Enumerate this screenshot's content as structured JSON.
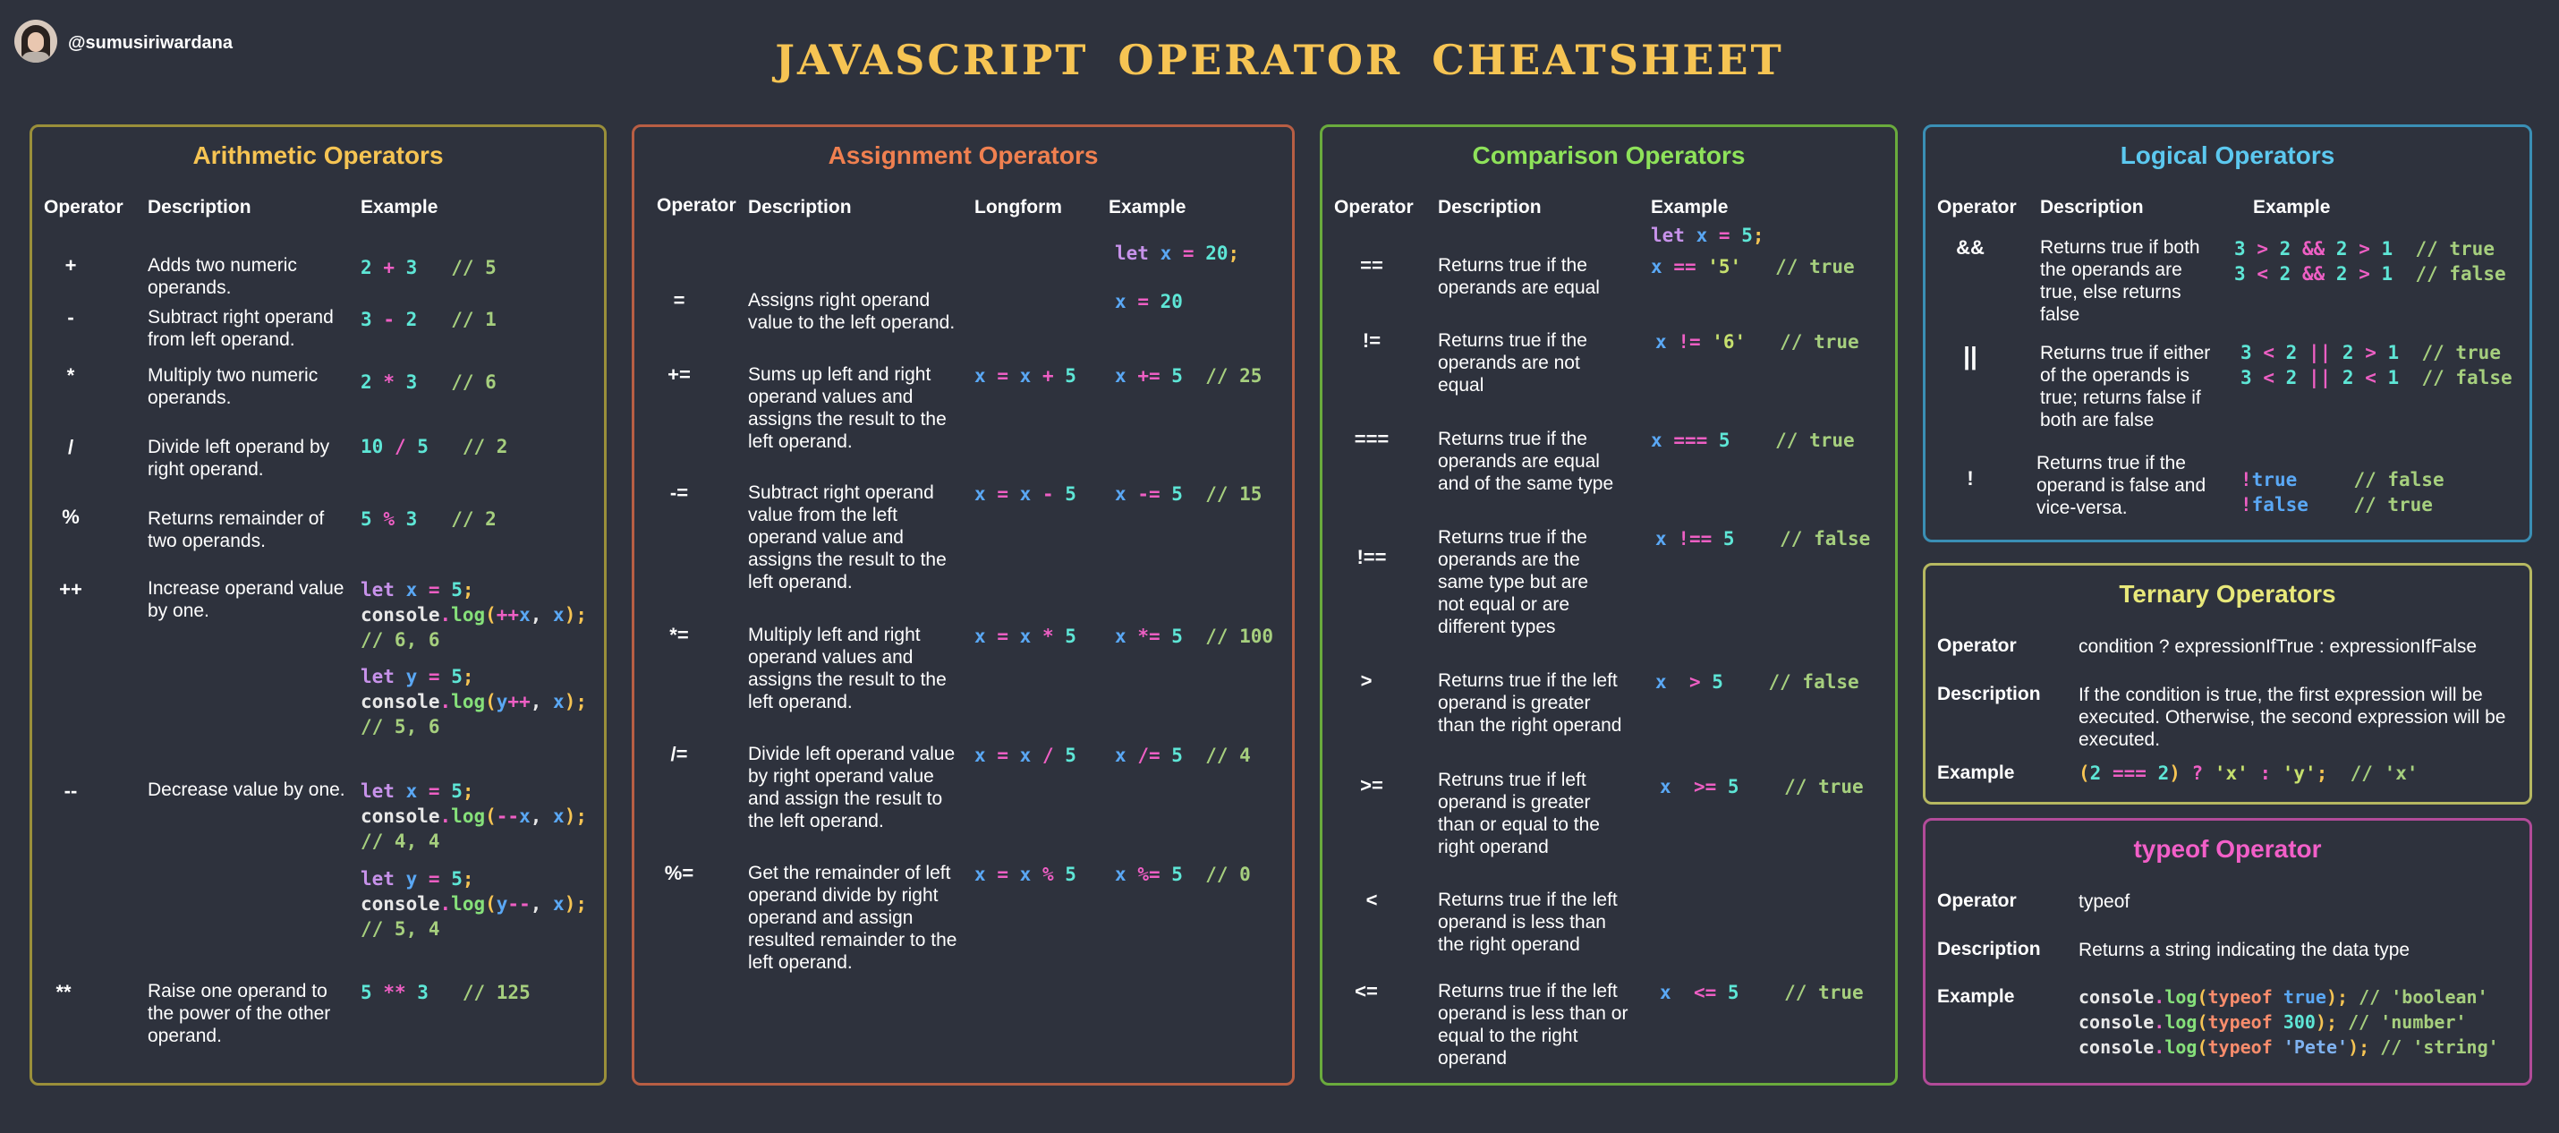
{
  "header": {
    "handle": "@sumusiriwardana",
    "title": "JAVASCRIPT OPERATOR CHEATSHEET"
  },
  "arithmetic": {
    "title": "Arithmetic Operators",
    "headers": [
      "Operator",
      "Description",
      "Example"
    ],
    "rows": [
      {
        "op": "+",
        "desc": "Adds two numeric operands.",
        "ex": "2 + 3   // 5"
      },
      {
        "op": "-",
        "desc": "Subtract right operand from left operand.",
        "ex": "3 - 2   // 1"
      },
      {
        "op": "*",
        "desc": "Multiply two numeric operands.",
        "ex": "2 * 3   // 6"
      },
      {
        "op": "/",
        "desc": "Divide left operand by right operand.",
        "ex": "10 / 5   // 2"
      },
      {
        "op": "%",
        "desc": "Returns remainder of two operands.",
        "ex": "5 % 3   // 2"
      },
      {
        "op": "++",
        "desc": "Increase operand value by one.",
        "ex": "let x = 5;\nconsole.log(++x, x);\n// 6, 6",
        "ex2": "let y = 5;\nconsole.log(y++, x);\n// 5, 6"
      },
      {
        "op": "--",
        "desc": "Decrease value by one.",
        "ex": "let x = 5;\nconsole.log(--x, x);\n// 4, 4",
        "ex2": "let y = 5;\nconsole.log(y--, x);\n// 5, 4"
      },
      {
        "op": "**",
        "desc": "Raise one operand to the power of the other operand.",
        "ex": "5 ** 3   // 125"
      }
    ]
  },
  "assignment": {
    "title": "Assignment Operators",
    "headers": [
      "Operator",
      "Description",
      "Longform",
      "Example"
    ],
    "preamble": "let x = 20;",
    "rows": [
      {
        "op": "=",
        "desc": "Assigns right operand value to the left operand.",
        "long": "",
        "ex": "x = 20"
      },
      {
        "op": "+=",
        "desc": "Sums up left and right operand values and assigns the result to the left operand.",
        "long": "x = x + 5",
        "ex": "x += 5  // 25"
      },
      {
        "op": "-=",
        "desc": "Subtract right operand value from the left operand value and assigns the result to the left operand.",
        "long": "x = x - 5",
        "ex": "x -= 5  // 15"
      },
      {
        "op": "*=",
        "desc": "Multiply left and right operand values and assigns the result to the left operand.",
        "long": "x = x * 5",
        "ex": "x *= 5  // 100"
      },
      {
        "op": "/=",
        "desc": "Divide left operand value by right operand value and assign the result to the left operand.",
        "long": "x = x / 5",
        "ex": "x /= 5  // 4"
      },
      {
        "op": "%=",
        "desc": "Get the remainder of left operand divide by right operand and assign resulted remainder to the left operand.",
        "long": "x = x % 5",
        "ex": "x %= 5  // 0"
      }
    ]
  },
  "comparison": {
    "title": "Comparison Operators",
    "headers": [
      "Operator",
      "Description",
      "Example"
    ],
    "preamble": "let x = 5;",
    "rows": [
      {
        "op": "==",
        "desc": "Returns true if the operands are equal",
        "ex": "x == '5'   // true"
      },
      {
        "op": "!=",
        "desc": "Returns true if the operands are not equal",
        "ex": "x != '6'   // true"
      },
      {
        "op": "===",
        "desc": "Returns true if the operands are equal and of the same type",
        "ex": "x === 5    // true"
      },
      {
        "op": "!==",
        "desc": "Returns true if the operands are the same type but are not equal or are different types",
        "ex": "x !== 5    // false"
      },
      {
        "op": ">",
        "desc": "Returns true if the left operand is greater than the right operand",
        "ex": "x  > 5    // false"
      },
      {
        "op": ">=",
        "desc": "Retruns true if left operand is greater than or equal to the right operand",
        "ex": "x  >= 5    // true"
      },
      {
        "op": "<",
        "desc": "Returns true if the left operand is less than the right operand",
        "ex": ""
      },
      {
        "op": "<=",
        "desc": "Returns true if the left operand is less than or equal to the right operand",
        "ex": "x  <= 5    // true"
      }
    ]
  },
  "logical": {
    "title": "Logical Operators",
    "headers": [
      "Operator",
      "Description",
      "Example"
    ],
    "rows": [
      {
        "op": "&&",
        "desc": "Returns true if both the operands are true, else returns false",
        "ex": "3 > 2 && 2 > 1  // true\n3 < 2 && 2 > 1  // false"
      },
      {
        "op": "||",
        "desc": "Returns true if either of the operands is true; returns false if both are false",
        "ex": "3 < 2 || 2 > 1  // true\n3 < 2 || 2 < 1  // false"
      },
      {
        "op": "!",
        "desc": "Returns true if the operand is false and vice-versa.",
        "ex": "!true     // false\n!false    // true"
      }
    ]
  },
  "ternary": {
    "title": "Ternary Operators",
    "operator_label": "Operator",
    "operator": "condition ? expressionIfTrue : expressionIfFalse",
    "description_label": "Description",
    "description": "If the condition is true, the first expression will be executed. Otherwise, the second expression will be executed.",
    "example_label": "Example",
    "example": "(2 === 2) ? 'x' : 'y';  // 'x'"
  },
  "typeof": {
    "title": "typeof Operator",
    "operator_label": "Operator",
    "operator": "typeof",
    "description_label": "Description",
    "description": "Returns a string indicating the data type",
    "example_label": "Example",
    "example": "console.log(typeof true); // 'boolean'\nconsole.log(typeof 300); // 'number'\nconsole.log(typeof 'Pete'); // 'string'"
  },
  "colors": {
    "background": "#2e323d",
    "title": "#f6c453",
    "arithmetic": "#f6c453",
    "assignment": "#f08050",
    "comparison": "#8ee25a",
    "logical": "#5cc8ef",
    "ternary": "#e8e87a",
    "typeof": "#f25fc8"
  }
}
